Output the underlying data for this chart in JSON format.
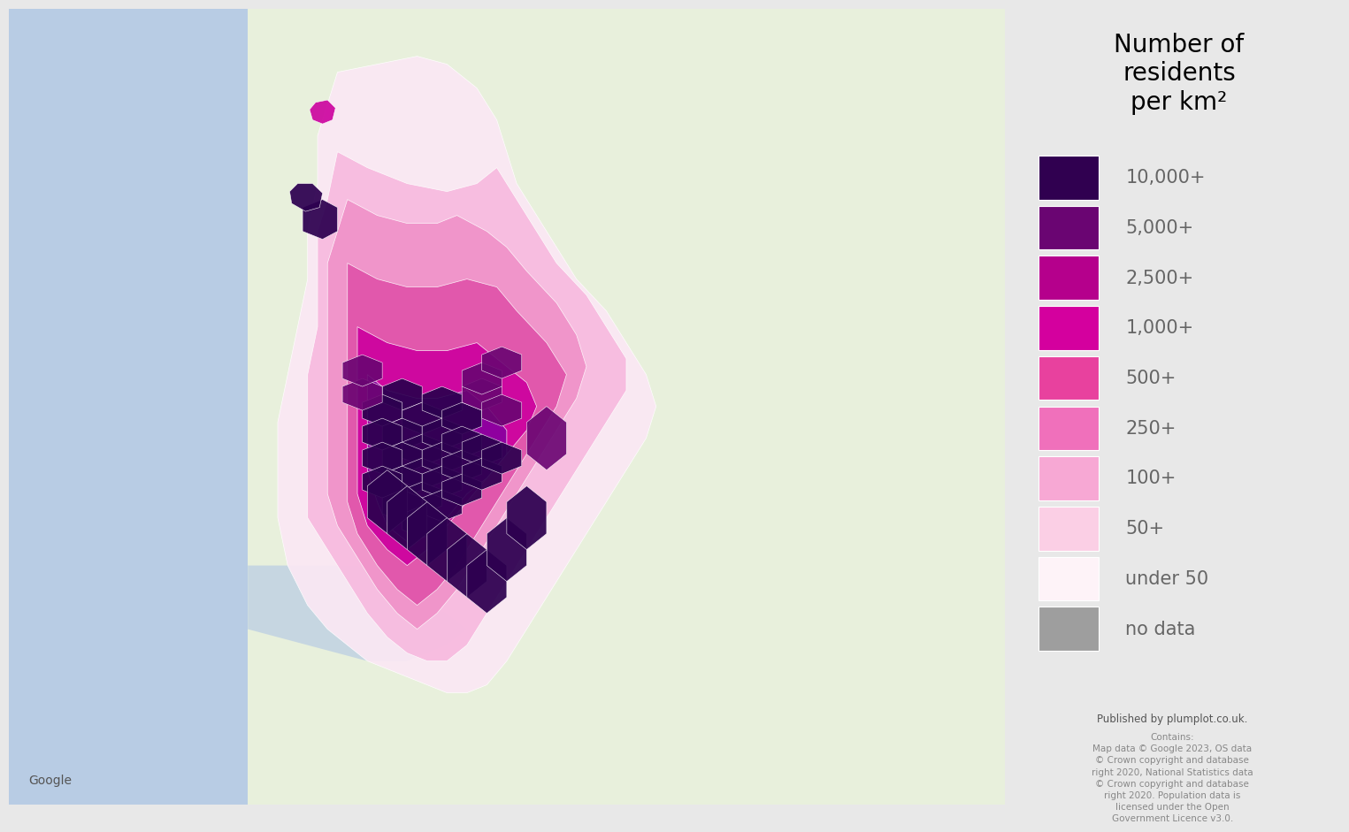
{
  "title": "Number of\nresidents\nper km²",
  "legend_labels": [
    "10,000+",
    "5,000+",
    "2,500+",
    "1,000+",
    "500+",
    "250+",
    "100+",
    "50+",
    "under 50",
    "no data"
  ],
  "legend_colors": [
    "#300050",
    "#6a0572",
    "#b5008c",
    "#d4009e",
    "#e8419e",
    "#f070bb",
    "#f7a8d4",
    "#fbcfe5",
    "#fef3f8",
    "#9e9e9e"
  ],
  "bg_panel_color": "#e8e8e8",
  "map_water_color": "#b8cce4",
  "map_land_color": "#e8f0dc",
  "google_text_color": "#555555",
  "title_fontsize": 20,
  "legend_fontsize": 15,
  "small_text_fontsize": 8,
  "published_text": "Published by plumplot.co.uk.",
  "contains_text": "Contains:\nMap data © Google 2023, OS data\n© Crown copyright and database\nright 2020, National Statistics data\n© Crown copyright and database\nright 2020. Population data is\nlicensed under the Open\nGovernment Licence v3.0."
}
